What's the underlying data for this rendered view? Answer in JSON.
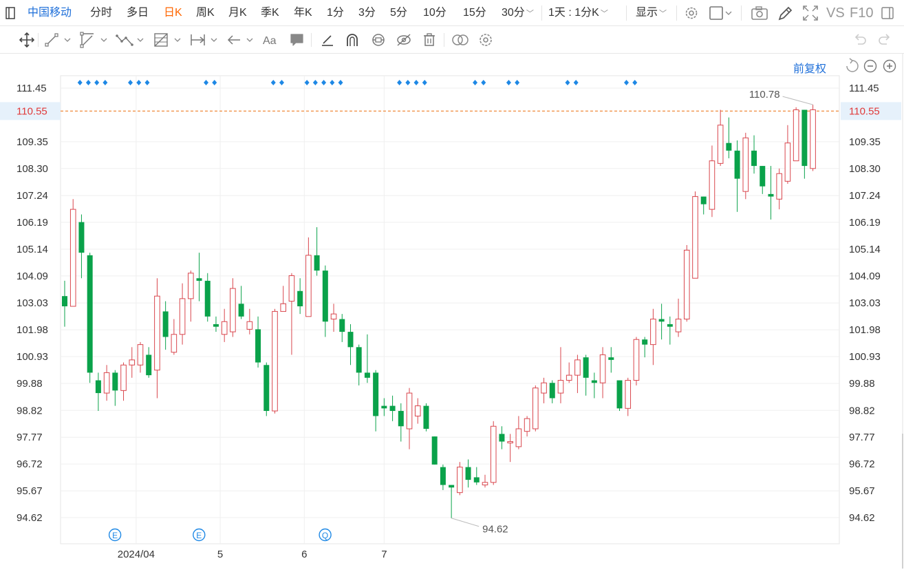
{
  "topbar": {
    "stock_name": "中国移动",
    "periods": [
      "分时",
      "多日",
      "日K",
      "周K",
      "月K",
      "季K",
      "年K",
      "1分",
      "3分",
      "5分",
      "10分",
      "15分",
      "30分"
    ],
    "active_period": "日K",
    "interval_select": "1天 : 1分K",
    "display_label": "显示",
    "vs_label": "VS",
    "f10_label": "F10"
  },
  "chart_controls": {
    "adjust_label": "前复权"
  },
  "colors": {
    "up": "#d9454c",
    "down": "#0aa24a",
    "accent": "#1e6fd9",
    "current_price_line": "#ef8a3a",
    "current_price_text": "#e03a3a"
  },
  "chart_data": {
    "type": "candlestick",
    "ylim": [
      94.1,
      112.0
    ],
    "yticks": [
      "111.45",
      "110.55",
      "109.35",
      "108.30",
      "107.24",
      "106.19",
      "105.14",
      "104.09",
      "103.03",
      "101.98",
      "100.93",
      "99.88",
      "98.82",
      "97.77",
      "96.72",
      "95.67",
      "94.62"
    ],
    "current_price": "110.55",
    "x_labels": [
      {
        "label": "2024/04",
        "index": 8.5
      },
      {
        "label": "5",
        "index": 18.5
      },
      {
        "label": "6",
        "index": 28.5
      },
      {
        "label": "7",
        "index": 38
      }
    ],
    "candles": [
      [
        103.3,
        102.9,
        103.9,
        102.1
      ],
      [
        102.9,
        106.7,
        107.1,
        102.9
      ],
      [
        106.2,
        105.0,
        106.5,
        104.0
      ],
      [
        104.9,
        100.3,
        105.0,
        99.9
      ],
      [
        100.0,
        99.5,
        100.3,
        98.8
      ],
      [
        99.5,
        100.3,
        100.6,
        99.2
      ],
      [
        100.3,
        99.6,
        100.4,
        99.0
      ],
      [
        99.6,
        100.6,
        100.7,
        99.2
      ],
      [
        100.6,
        100.8,
        101.3,
        100.1
      ],
      [
        100.6,
        101.4,
        101.5,
        100.3
      ],
      [
        101.0,
        100.2,
        101.3,
        100.1
      ],
      [
        100.4,
        103.3,
        104.0,
        99.3
      ],
      [
        102.7,
        101.7,
        103.1,
        101.2
      ],
      [
        101.1,
        101.8,
        102.4,
        101.0
      ],
      [
        101.8,
        103.2,
        103.8,
        101.4
      ],
      [
        103.2,
        104.2,
        104.3,
        102.3
      ],
      [
        104.0,
        103.9,
        105.0,
        103.1
      ],
      [
        103.9,
        102.5,
        104.2,
        102.3
      ],
      [
        102.2,
        102.1,
        102.5,
        101.9
      ],
      [
        101.8,
        102.3,
        102.8,
        101.5
      ],
      [
        101.9,
        103.6,
        104.0,
        101.7
      ],
      [
        103.0,
        102.5,
        103.7,
        102.4
      ],
      [
        102.0,
        102.3,
        102.8,
        101.8
      ],
      [
        102.0,
        100.7,
        102.5,
        100.5
      ],
      [
        100.6,
        98.8,
        100.7,
        98.6
      ],
      [
        98.8,
        102.7,
        102.8,
        98.7
      ],
      [
        102.7,
        103.0,
        103.7,
        102.7
      ],
      [
        103.1,
        104.1,
        104.2,
        101.0
      ],
      [
        103.5,
        102.9,
        104.0,
        102.6
      ],
      [
        102.5,
        104.9,
        105.6,
        102.5
      ],
      [
        104.9,
        104.3,
        106.0,
        104.1
      ],
      [
        104.3,
        102.3,
        104.5,
        101.7
      ],
      [
        102.4,
        102.6,
        103.0,
        101.9
      ],
      [
        102.4,
        101.9,
        102.6,
        101.5
      ],
      [
        101.9,
        101.3,
        102.2,
        100.6
      ],
      [
        101.3,
        100.3,
        101.4,
        99.8
      ],
      [
        100.3,
        100.1,
        101.8,
        99.9
      ],
      [
        100.3,
        98.6,
        100.4,
        98.0
      ],
      [
        99.0,
        98.9,
        99.3,
        98.6
      ],
      [
        99.0,
        98.8,
        99.4,
        98.4
      ],
      [
        98.8,
        98.2,
        99.1,
        97.6
      ],
      [
        98.1,
        99.5,
        99.7,
        97.3
      ],
      [
        98.6,
        99.0,
        99.3,
        98.3
      ],
      [
        99.0,
        98.1,
        99.1,
        98.0
      ],
      [
        97.8,
        96.7,
        97.8,
        96.7
      ],
      [
        96.6,
        95.9,
        96.7,
        95.7
      ],
      [
        95.9,
        95.8,
        95.9,
        94.6
      ],
      [
        95.6,
        96.6,
        96.8,
        95.5
      ],
      [
        96.6,
        96.1,
        96.9,
        95.8
      ],
      [
        96.2,
        96.0,
        96.6,
        95.9
      ],
      [
        95.9,
        96.0,
        96.3,
        95.8
      ],
      [
        96.0,
        98.2,
        98.4,
        95.9
      ],
      [
        97.9,
        97.6,
        98.2,
        97.3
      ],
      [
        97.6,
        97.6,
        97.9,
        96.8
      ],
      [
        97.4,
        98.1,
        98.6,
        97.3
      ],
      [
        98.0,
        98.5,
        98.6,
        97.8
      ],
      [
        98.1,
        99.7,
        99.8,
        98.0
      ],
      [
        99.5,
        99.9,
        100.1,
        99.1
      ],
      [
        99.9,
        99.3,
        100.0,
        99.1
      ],
      [
        99.5,
        100.0,
        101.3,
        99.1
      ],
      [
        100.0,
        100.2,
        100.7,
        99.9
      ],
      [
        100.2,
        100.8,
        101.0,
        99.5
      ],
      [
        100.9,
        100.1,
        101.0,
        99.4
      ],
      [
        100.0,
        99.9,
        100.3,
        99.3
      ],
      [
        99.9,
        101.0,
        101.3,
        99.3
      ],
      [
        100.9,
        100.8,
        101.3,
        100.3
      ],
      [
        100.0,
        98.9,
        100.0,
        98.8
      ],
      [
        98.9,
        100.0,
        100.1,
        98.6
      ],
      [
        100.0,
        101.6,
        101.7,
        99.8
      ],
      [
        101.6,
        101.4,
        101.7,
        100.9
      ],
      [
        101.4,
        102.4,
        102.8,
        100.6
      ],
      [
        102.4,
        102.3,
        103.0,
        101.6
      ],
      [
        102.2,
        102.1,
        102.5,
        101.4
      ],
      [
        101.9,
        102.4,
        103.2,
        101.7
      ],
      [
        102.4,
        105.1,
        105.3,
        102.3
      ],
      [
        104.0,
        107.2,
        107.4,
        104.0
      ],
      [
        107.2,
        106.9,
        107.2,
        106.5
      ],
      [
        106.7,
        108.6,
        109.2,
        106.4
      ],
      [
        108.5,
        110.0,
        110.6,
        108.4
      ],
      [
        109.3,
        109.0,
        110.3,
        108.7
      ],
      [
        109.0,
        107.9,
        109.4,
        106.6
      ],
      [
        107.4,
        109.5,
        109.7,
        107.1
      ],
      [
        109.0,
        108.4,
        109.6,
        108.1
      ],
      [
        108.4,
        107.6,
        108.4,
        107.3
      ],
      [
        107.3,
        107.2,
        108.4,
        106.3
      ],
      [
        107.1,
        108.1,
        108.3,
        106.7
      ],
      [
        107.8,
        109.3,
        110.0,
        107.7
      ],
      [
        108.6,
        110.6,
        110.7,
        108.6
      ],
      [
        110.6,
        108.4,
        110.6,
        107.9
      ],
      [
        108.3,
        110.6,
        110.8,
        108.2
      ]
    ],
    "high_annotation": "110.78",
    "low_annotation": "94.62",
    "event_markers": [
      {
        "label": "E",
        "index": 5
      },
      {
        "label": "E",
        "index": 15
      },
      {
        "label": "Q",
        "index": 30
      }
    ],
    "signal_dot_groups": [
      [
        1,
        2,
        3,
        4
      ],
      [
        7,
        8,
        9
      ],
      [
        16,
        17
      ],
      [
        24,
        25
      ],
      [
        28,
        29,
        30,
        31,
        32
      ],
      [
        39,
        40,
        41,
        42
      ],
      [
        48,
        49
      ],
      [
        52,
        53
      ],
      [
        59,
        60
      ],
      [
        66,
        67
      ]
    ]
  }
}
